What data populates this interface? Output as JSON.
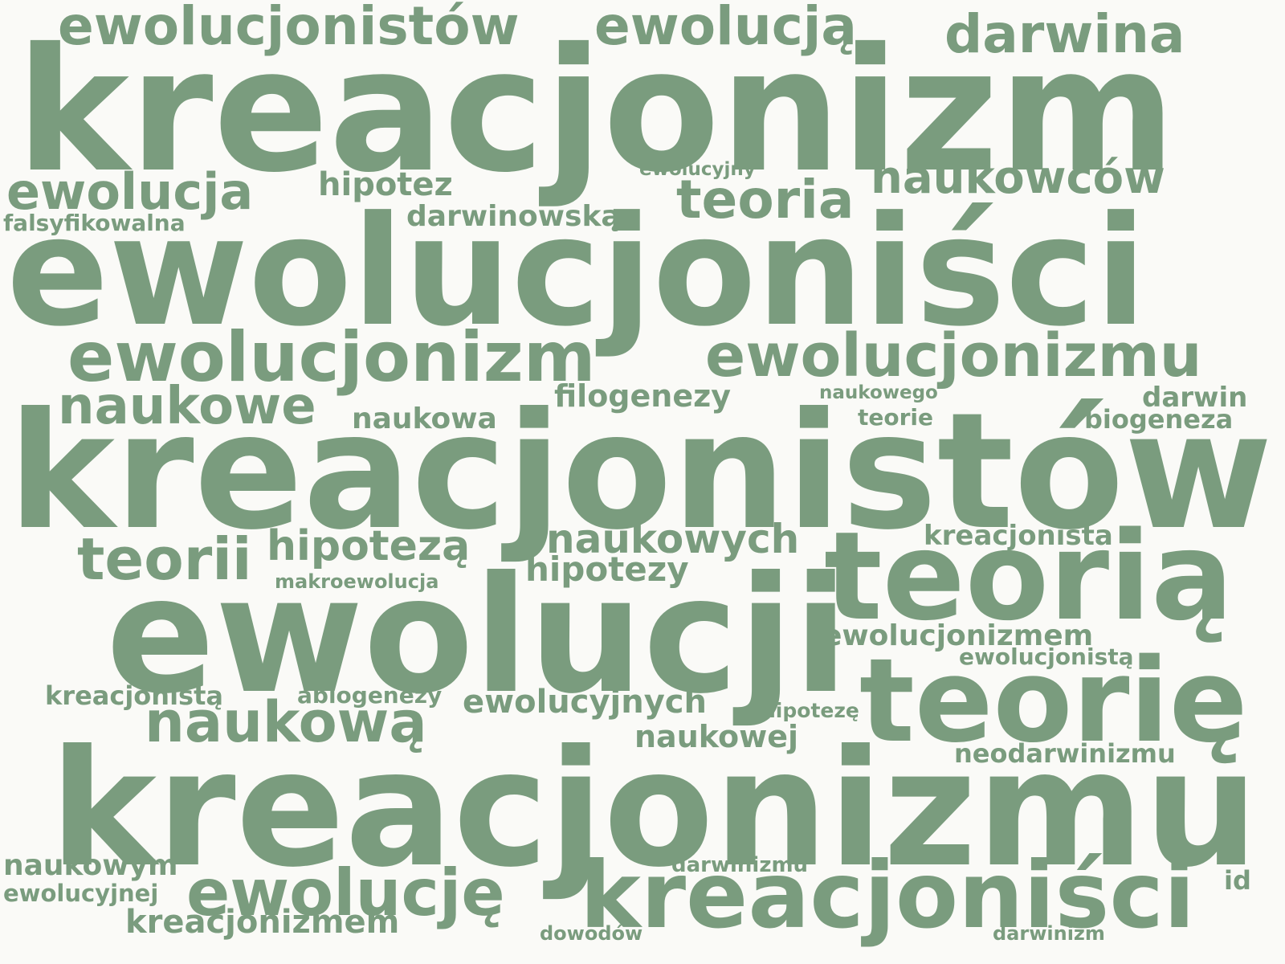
{
  "colors": {
    "background": "#fafaf7",
    "word": "#7a9c7e"
  },
  "words": [
    "kreacjonizm",
    "ewolucjoniści",
    "kreacjonistów",
    "ewolucji",
    "kreacjonizmu",
    "teorią",
    "teorię",
    "kreacjoniści",
    "ewolucjonizm",
    "ewolucjonizmu",
    "ewolucjonistów",
    "ewolucją",
    "darwina",
    "ewolucja",
    "teoria",
    "naukowców",
    "naukowe",
    "teorii",
    "naukową",
    "ewolucję",
    "hipotezą",
    "naukowych",
    "hipotez",
    "darwinowską",
    "filogenezy",
    "naukowa",
    "hipotezy",
    "ewolucjonizmem",
    "ewolucyjnych",
    "naukowej",
    "kreacjonizmem",
    "kreacjonista",
    "darwin",
    "biogeneza",
    "neodarwinizmu",
    "kreacjonistą",
    "abiogenezy",
    "naukowym",
    "ewolucjonistą",
    "falsyfikowalna",
    "ewolucyjnej",
    "makroewolucja",
    "darwinizmu",
    "ewolucyjny",
    "naukowego",
    "teorie",
    "hipotezę",
    "dowodów",
    "darwinizm",
    "id"
  ]
}
